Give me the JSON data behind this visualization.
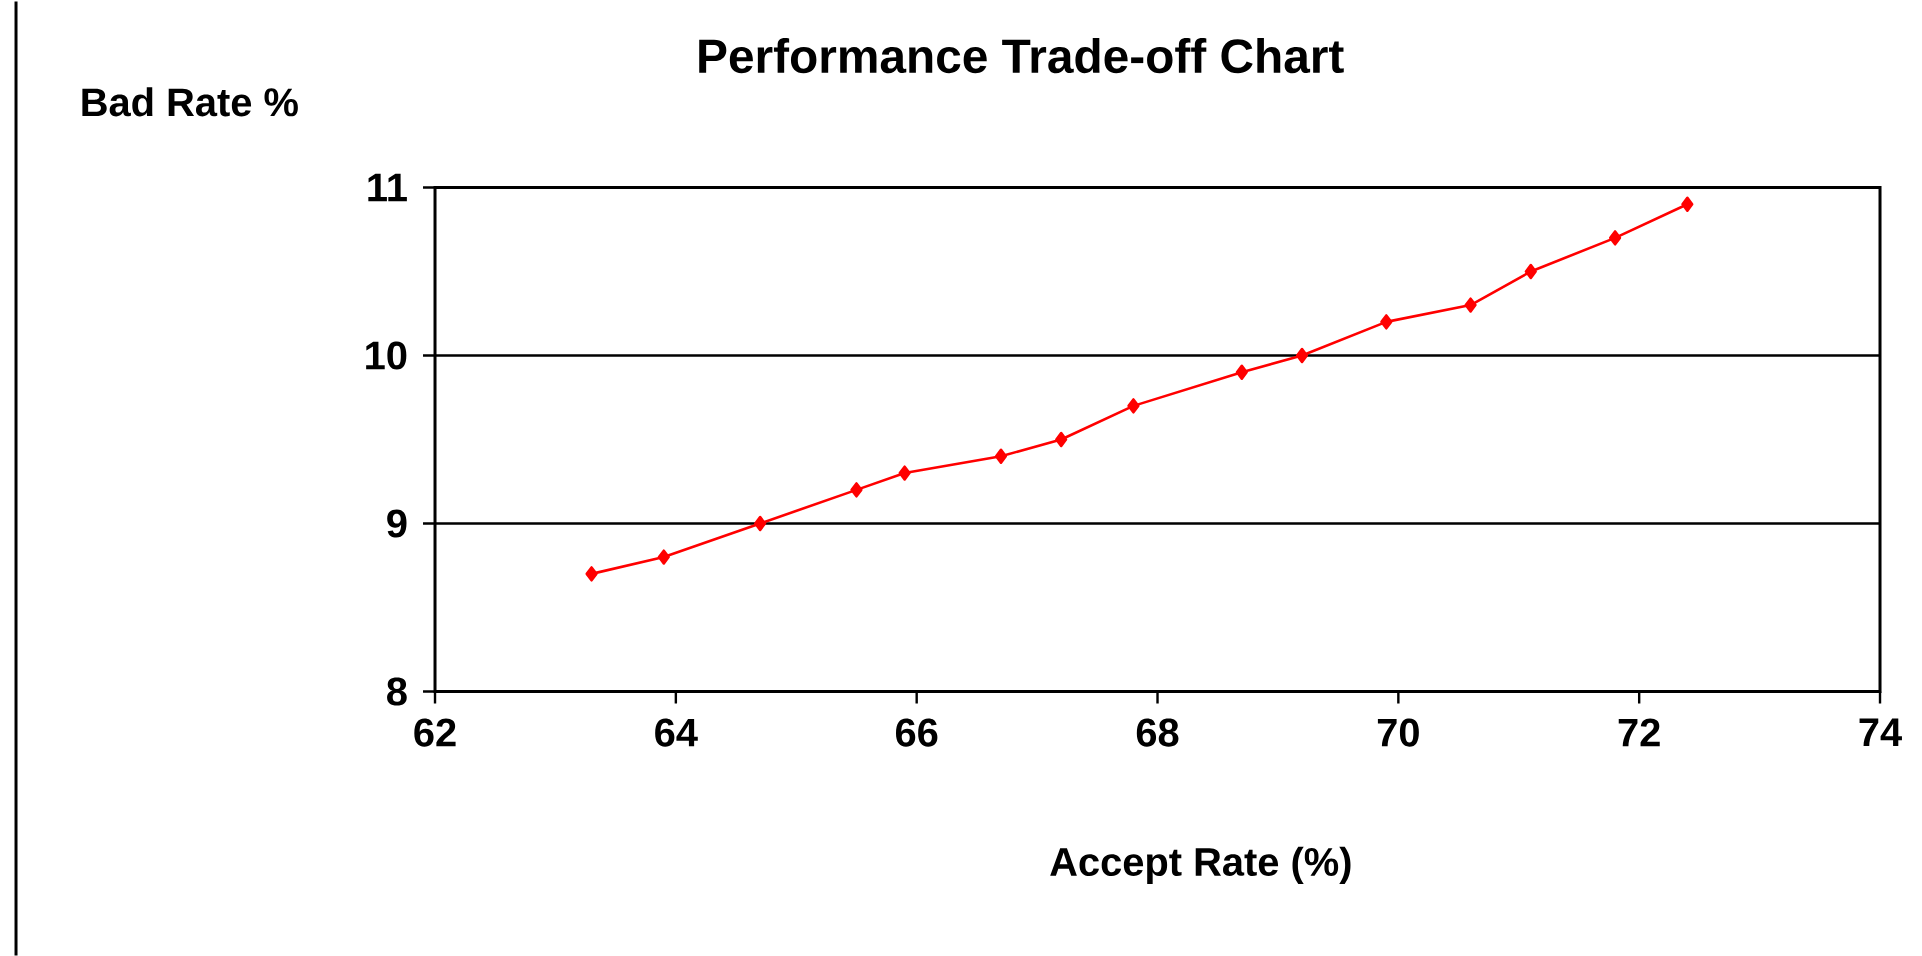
{
  "chart_data": {
    "type": "line",
    "title": "Performance Trade-off Chart",
    "xlabel": "Accept Rate (%)",
    "ylabel": "Bad Rate %",
    "series": [
      {
        "color": "#ff0000",
        "x": [
          63.3,
          63.9,
          64.7,
          65.5,
          65.9,
          66.7,
          67.2,
          67.8,
          68.7,
          69.2,
          69.9,
          70.6,
          71.1,
          71.8,
          72.4
        ],
        "values": [
          8.7,
          8.8,
          9.0,
          9.2,
          9.3,
          9.4,
          9.5,
          9.7,
          9.9,
          10.0,
          10.2,
          10.3,
          10.5,
          10.7,
          10.9
        ]
      }
    ],
    "xlim": [
      62,
      74
    ],
    "xticks": [
      62,
      64,
      66,
      68,
      70,
      72,
      74
    ],
    "ylim": [
      8,
      11
    ],
    "yticks": [
      8,
      9,
      10,
      11
    ],
    "grid": "y",
    "marker": "diamond",
    "line_style": "solid"
  }
}
